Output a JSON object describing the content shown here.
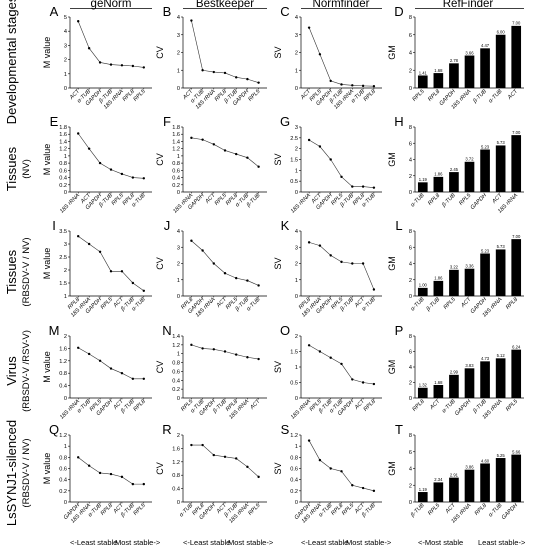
{
  "methods": [
    "geNorm",
    "Bestkeeper",
    "Normfinder",
    "RefFinder"
  ],
  "rows": [
    {
      "title": "Developmental stages",
      "subtitle": ""
    },
    {
      "title": "Tissues",
      "subtitle": "(NV)"
    },
    {
      "title": "Tissues",
      "subtitle": "(RBSDV-V / NV)"
    },
    {
      "title": "Virus",
      "subtitle": "(RBSDV-V /RSV-V)"
    },
    {
      "title": "LsSYNJ1-silenced",
      "subtitle": "(RBSDV-V / NV)"
    }
  ],
  "footer": {
    "left_a": "<-Least stable",
    "left_b": "Most stable->",
    "right_a": "<-Most stable",
    "right_b": "Least stable->"
  },
  "chart_data": [
    {
      "label": "A",
      "type": "line",
      "ylabel": "M value",
      "ylim": [
        0,
        5
      ],
      "yticks": [
        0,
        1,
        2,
        3,
        4,
        5
      ],
      "categories": [
        "ACT",
        "α-TUB",
        "GAPDH",
        "β-TUB",
        "18S rRNA",
        "RPL8",
        "RPL5"
      ],
      "values": [
        4.7,
        2.8,
        1.8,
        1.65,
        1.6,
        1.55,
        1.45
      ]
    },
    {
      "label": "B",
      "type": "line",
      "ylabel": "CV",
      "ylim": [
        0,
        4
      ],
      "yticks": [
        0,
        1,
        2,
        3,
        4
      ],
      "categories": [
        "ACT",
        "α-TUB",
        "18S rRNA",
        "RPL8",
        "β-TUB",
        "GAPDH",
        "RPL5"
      ],
      "values": [
        3.8,
        1.0,
        0.9,
        0.85,
        0.6,
        0.5,
        0.3
      ]
    },
    {
      "label": "C",
      "type": "line",
      "ylabel": "SV",
      "ylim": [
        0,
        4
      ],
      "yticks": [
        0,
        1,
        2,
        3,
        4
      ],
      "categories": [
        "ACT",
        "RPL5",
        "GAPDH",
        "β-TUB",
        "18S rRNA",
        "α-TUB",
        "RPL8"
      ],
      "values": [
        3.4,
        1.9,
        0.4,
        0.2,
        0.15,
        0.12,
        0.1
      ]
    },
    {
      "label": "D",
      "type": "bar",
      "ylabel": "GM",
      "ylim": [
        0,
        8
      ],
      "yticks": [
        0,
        2,
        4,
        6,
        8
      ],
      "categories": [
        "RPL5",
        "RPL8",
        "GAPDH",
        "18S rRNA",
        "β-TUB",
        "α-TUB",
        "ACT"
      ],
      "values": [
        1.41,
        1.68,
        2.78,
        3.66,
        4.47,
        6.0,
        7.0
      ],
      "labels": [
        "1.41",
        "1.68",
        "2.78",
        "3.66",
        "4.47",
        "6.00",
        "7.00"
      ]
    },
    {
      "label": "E",
      "type": "line",
      "ylabel": "M value",
      "ylim": [
        0,
        1.8
      ],
      "yticks": [
        0,
        0.2,
        0.4,
        0.6,
        0.8,
        1.0,
        1.2,
        1.4,
        1.6,
        1.8
      ],
      "categories": [
        "18S rRNA",
        "ACT",
        "GAPDH",
        "β-TUB",
        "RPL5",
        "RPL8",
        "α-TUB"
      ],
      "values": [
        1.62,
        1.2,
        0.8,
        0.62,
        0.5,
        0.4,
        0.38
      ]
    },
    {
      "label": "F",
      "type": "line",
      "ylabel": "CV",
      "ylim": [
        0,
        1.8
      ],
      "yticks": [
        0,
        0.2,
        0.4,
        0.6,
        0.8,
        1.0,
        1.2,
        1.4,
        1.6,
        1.8
      ],
      "categories": [
        "18S rRNA",
        "GAPDH",
        "ACT",
        "RPL5",
        "RPL8",
        "α-TUB",
        "β-TUB"
      ],
      "values": [
        1.5,
        1.45,
        1.32,
        1.15,
        1.05,
        0.95,
        0.7
      ]
    },
    {
      "label": "G",
      "type": "line",
      "ylabel": "SV",
      "ylim": [
        0,
        3
      ],
      "yticks": [
        0,
        0.5,
        1.0,
        1.5,
        2.0,
        2.5,
        3.0
      ],
      "categories": [
        "18S rRNA",
        "ACT",
        "GAPDH",
        "RPL5",
        "β-TUB",
        "RPL8",
        "α-TUB"
      ],
      "values": [
        2.4,
        2.1,
        1.5,
        0.7,
        0.25,
        0.25,
        0.2
      ]
    },
    {
      "label": "H",
      "type": "bar",
      "ylabel": "GM",
      "ylim": [
        0,
        8
      ],
      "yticks": [
        0,
        2,
        4,
        6,
        8
      ],
      "categories": [
        "α-TUB",
        "RPL8",
        "β-TUB",
        "RPL5",
        "GAPDH",
        "ACT",
        "18S rRNA"
      ],
      "values": [
        1.19,
        1.86,
        2.45,
        3.72,
        5.23,
        5.73,
        7.0
      ],
      "labels": [
        "1.19",
        "1.86",
        "2.45",
        "3.72",
        "5.23",
        "5.73",
        "7.00"
      ]
    },
    {
      "label": "I",
      "type": "line",
      "ylabel": "M value",
      "ylim": [
        1,
        3.5
      ],
      "yticks": [
        1.0,
        1.5,
        2.0,
        2.5,
        3.0,
        3.5
      ],
      "categories": [
        "RPL8",
        "18S rRNA",
        "GAPDH",
        "RPL5",
        "ACT",
        "β-TUB",
        "α-TUB"
      ],
      "values": [
        3.3,
        3.0,
        2.7,
        1.95,
        1.95,
        1.5,
        1.2
      ]
    },
    {
      "label": "J",
      "type": "line",
      "ylabel": "CV",
      "ylim": [
        0,
        4
      ],
      "yticks": [
        0,
        1,
        2,
        3,
        4
      ],
      "categories": [
        "RPL8",
        "GAPDH",
        "18S rRNA",
        "ACT",
        "RPL5",
        "β-TUB",
        "α-TUB"
      ],
      "values": [
        3.4,
        2.8,
        2.0,
        1.4,
        1.1,
        0.95,
        0.65
      ]
    },
    {
      "label": "K",
      "type": "line",
      "ylabel": "SV",
      "ylim": [
        0,
        4
      ],
      "yticks": [
        0,
        1,
        2,
        3,
        4
      ],
      "categories": [
        "RPL8",
        "18S rRNA",
        "GAPDH",
        "RPL5",
        "β-TUB",
        "ACT",
        "α-TUB"
      ],
      "values": [
        3.3,
        3.1,
        2.5,
        2.1,
        2.0,
        2.0,
        0.4
      ]
    },
    {
      "label": "L",
      "type": "bar",
      "ylabel": "GM",
      "ylim": [
        0,
        8
      ],
      "yticks": [
        0,
        2,
        4,
        6,
        8
      ],
      "categories": [
        "α-TUB",
        "β-TUB",
        "RPL5",
        "ACT",
        "GAPDH",
        "18S rRNA",
        "RPL8"
      ],
      "values": [
        1.0,
        1.86,
        3.22,
        3.36,
        5.23,
        5.73,
        7.0
      ],
      "labels": [
        "1.00",
        "1.86",
        "3.22",
        "3.36",
        "5.23",
        "5.73",
        "7.00"
      ]
    },
    {
      "label": "M",
      "type": "line",
      "ylabel": "M value",
      "ylim": [
        0,
        2
      ],
      "yticks": [
        0,
        0.4,
        0.8,
        1.2,
        1.6,
        2.0
      ],
      "categories": [
        "18S rRNA",
        "α-TUB",
        "RPL5",
        "GAPDH",
        "ACT",
        "β-TUB",
        "RPL8"
      ],
      "values": [
        1.62,
        1.42,
        1.2,
        0.95,
        0.8,
        0.62,
        0.62
      ]
    },
    {
      "label": "N",
      "type": "line",
      "ylabel": "CV",
      "ylim": [
        0,
        1.4
      ],
      "yticks": [
        0,
        0.2,
        0.4,
        0.6,
        0.8,
        1.0,
        1.2,
        1.4
      ],
      "categories": [
        "RPL5",
        "α-TUB",
        "GAPDH",
        "β-TUB",
        "RPL8",
        "18S rRNA",
        "ACT"
      ],
      "values": [
        1.2,
        1.12,
        1.1,
        1.05,
        0.98,
        0.92,
        0.88
      ]
    },
    {
      "label": "O",
      "type": "line",
      "ylabel": "SV",
      "ylim": [
        0,
        2
      ],
      "yticks": [
        0,
        0.5,
        1.0,
        1.5,
        2.0
      ],
      "categories": [
        "18S rRNA",
        "RPL5",
        "β-TUB",
        "α-TUB",
        "GAPDH",
        "ACT",
        "RPL8"
      ],
      "values": [
        1.7,
        1.5,
        1.3,
        1.1,
        0.6,
        0.5,
        0.45
      ]
    },
    {
      "label": "P",
      "type": "bar",
      "ylabel": "GM",
      "ylim": [
        0,
        8
      ],
      "yticks": [
        0,
        2,
        4,
        6,
        8
      ],
      "categories": [
        "RPL8",
        "ACT",
        "α-TUB",
        "GAPDH",
        "β-TUB",
        "18S rRNA",
        "RPL5"
      ],
      "values": [
        1.32,
        1.68,
        2.99,
        3.83,
        4.73,
        5.12,
        6.24
      ],
      "labels": [
        "1.32",
        "1.68",
        "2.99",
        "3.83",
        "4.73",
        "5.12",
        "6.24"
      ]
    },
    {
      "label": "Q",
      "type": "line",
      "ylabel": "M value",
      "ylim": [
        0,
        1.2
      ],
      "yticks": [
        0,
        0.2,
        0.4,
        0.6,
        0.8,
        1.0,
        1.2
      ],
      "categories": [
        "GAPDH",
        "18S rRNA",
        "α-TUB",
        "RPL8",
        "ACT",
        "β-TUB",
        "RPL5"
      ],
      "values": [
        0.8,
        0.65,
        0.52,
        0.5,
        0.45,
        0.32,
        0.32
      ]
    },
    {
      "label": "R",
      "type": "line",
      "ylabel": "CV",
      "ylim": [
        0,
        2
      ],
      "yticks": [
        0,
        0.4,
        0.8,
        1.2,
        1.6,
        2.0
      ],
      "categories": [
        "α-TUB",
        "RPL8",
        "GAPDH",
        "ACT",
        "β-TUB",
        "18S rRNA",
        "RPL5"
      ],
      "values": [
        1.7,
        1.7,
        1.4,
        1.35,
        1.3,
        1.05,
        0.75
      ]
    },
    {
      "label": "S",
      "type": "line",
      "ylabel": "SV",
      "ylim": [
        0,
        1.2
      ],
      "yticks": [
        0,
        0.2,
        0.4,
        0.6,
        0.8,
        1.0,
        1.2
      ],
      "categories": [
        "GAPDH",
        "18S rRNA",
        "α-TUB",
        "RPL8",
        "RPL5",
        "ACT",
        "β-TUB"
      ],
      "values": [
        1.1,
        0.75,
        0.6,
        0.55,
        0.3,
        0.25,
        0.2
      ]
    },
    {
      "label": "T",
      "type": "bar",
      "ylabel": "GM",
      "ylim": [
        0,
        8
      ],
      "yticks": [
        0,
        2,
        4,
        6,
        8
      ],
      "categories": [
        "β-TUB",
        "RPL5",
        "ACT",
        "18S rRNA",
        "RPL8",
        "α-TUB",
        "GAPDH"
      ],
      "values": [
        1.19,
        2.34,
        2.91,
        3.86,
        4.6,
        5.25,
        5.66
      ],
      "labels": [
        "1.19",
        "2.34",
        "2.91",
        "3.86",
        "4.60",
        "5.25",
        "5.66"
      ]
    }
  ]
}
